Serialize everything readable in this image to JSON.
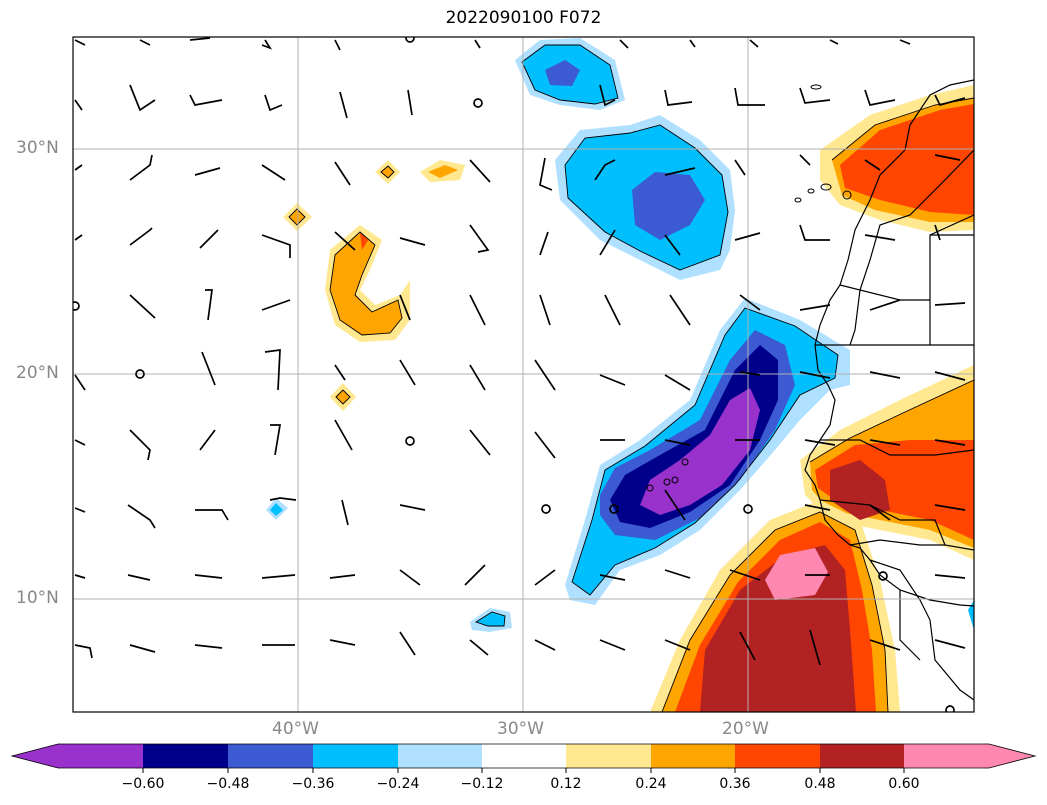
{
  "title": "2022090100 F072",
  "latitude_labels": [
    "30°N",
    "20°N",
    "10°N"
  ],
  "longitude_labels": [
    "40°W",
    "30°W",
    "20°W"
  ],
  "colorbar": {
    "ticks": [
      "−0.60",
      "−0.48",
      "−0.36",
      "−0.24",
      "−0.12",
      "0.12",
      "0.24",
      "0.36",
      "0.48",
      "0.60"
    ],
    "colors": [
      "#9932cc",
      "#00008b",
      "#3c5ad2",
      "#00bfff",
      "#b0e0ff",
      "#ffffff",
      "#ffe88f",
      "#ffa500",
      "#ff4500",
      "#b22222",
      "#ff88b0"
    ],
    "extend": "both"
  },
  "map": {
    "lon_range_deg_west": [
      50,
      10
    ],
    "lat_range_deg_north": [
      5,
      35
    ],
    "grid": true,
    "features": [
      "coastlines",
      "country-borders",
      "wind-barbs",
      "filled-contours"
    ]
  }
}
